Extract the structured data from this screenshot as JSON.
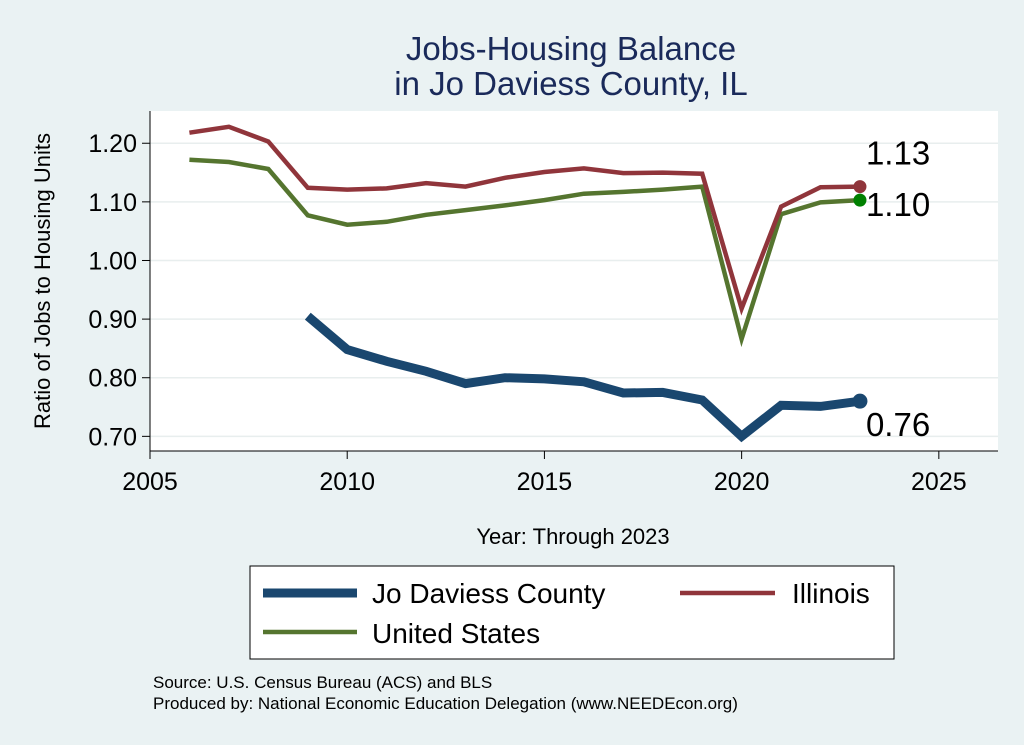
{
  "chart_data": {
    "type": "line",
    "title": [
      "Jobs-Housing Balance",
      "in Jo Daviess County, IL"
    ],
    "xlabel": "Year: Through 2023",
    "ylabel": "Ratio of Jobs to Housing Units",
    "xlim": [
      2005,
      2026.5
    ],
    "ylim": [
      0.675,
      1.255
    ],
    "xticks": [
      2005,
      2010,
      2015,
      2020,
      2025
    ],
    "yticks": [
      0.7,
      0.8,
      0.9,
      1.0,
      1.1,
      1.2
    ],
    "ytick_labels": [
      "0.70",
      "0.80",
      "0.90",
      "1.00",
      "1.10",
      "1.20"
    ],
    "grid": true,
    "series": [
      {
        "name": "Jo Daviess County",
        "color": "#1a476f",
        "x": [
          2009,
          2010,
          2011,
          2012,
          2013,
          2014,
          2015,
          2016,
          2017,
          2018,
          2019,
          2020,
          2021,
          2022,
          2023
        ],
        "values": [
          0.905,
          0.848,
          0.828,
          0.811,
          0.79,
          0.8,
          0.798,
          0.793,
          0.774,
          0.775,
          0.762,
          0.7,
          0.753,
          0.751,
          0.76
        ],
        "end_label": "0.76"
      },
      {
        "name": "Illinois",
        "color": "#90353b",
        "x": [
          2006,
          2007,
          2008,
          2009,
          2010,
          2011,
          2012,
          2013,
          2014,
          2015,
          2016,
          2017,
          2018,
          2019,
          2020,
          2021,
          2022,
          2023
        ],
        "values": [
          1.218,
          1.228,
          1.203,
          1.124,
          1.121,
          1.123,
          1.132,
          1.126,
          1.141,
          1.151,
          1.157,
          1.149,
          1.15,
          1.148,
          0.918,
          1.092,
          1.125,
          1.126
        ],
        "end_label": "1.13"
      },
      {
        "name": "United States",
        "color": "#55752f",
        "x": [
          2006,
          2007,
          2008,
          2009,
          2010,
          2011,
          2012,
          2013,
          2014,
          2015,
          2016,
          2017,
          2018,
          2019,
          2020,
          2021,
          2022,
          2023
        ],
        "values": [
          1.172,
          1.168,
          1.156,
          1.077,
          1.061,
          1.066,
          1.078,
          1.086,
          1.094,
          1.103,
          1.114,
          1.117,
          1.121,
          1.126,
          0.866,
          1.079,
          1.099,
          1.103
        ],
        "end_label": "1.10",
        "end_marker_color": "#008000"
      }
    ],
    "legend_placement": "bottom"
  },
  "source": "Source: U.S. Census Bureau (ACS) and BLS",
  "produced_by": "Produced by: National Economic Education Delegation (www.NEEDEcon.org)"
}
